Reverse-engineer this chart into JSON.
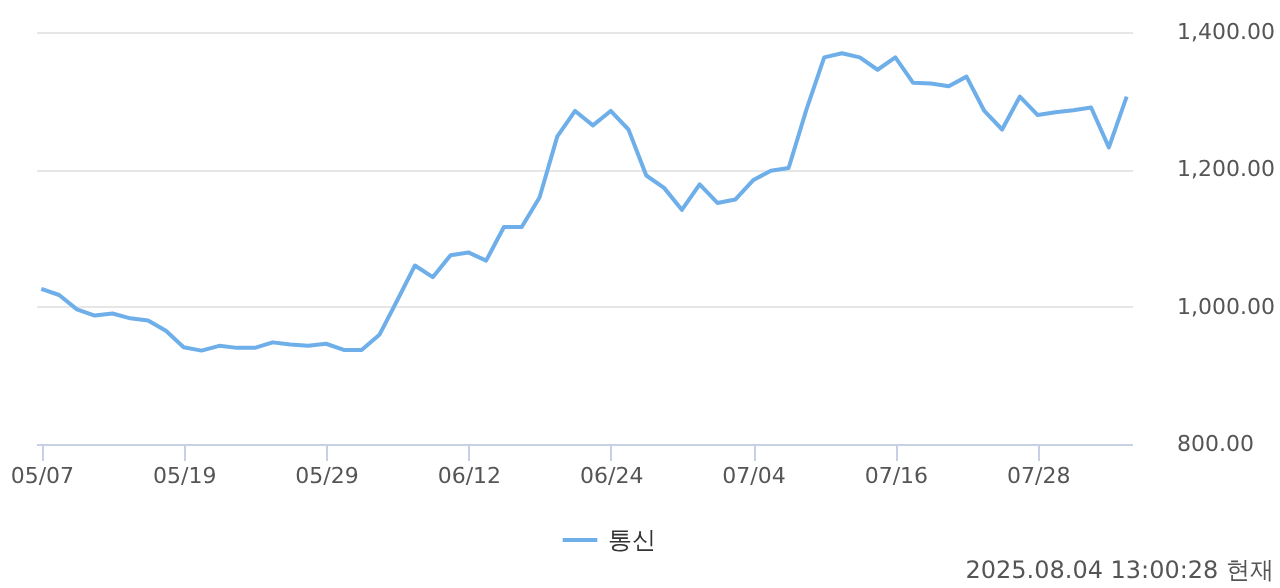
{
  "chart_data": {
    "type": "line",
    "categories": [
      "05/07",
      null,
      null,
      null,
      null,
      null,
      null,
      null,
      "05/19",
      null,
      null,
      null,
      null,
      null,
      null,
      null,
      "05/29",
      null,
      null,
      null,
      null,
      null,
      null,
      null,
      "06/12",
      null,
      null,
      null,
      null,
      null,
      null,
      null,
      "06/24",
      null,
      null,
      null,
      null,
      null,
      null,
      null,
      "07/04",
      null,
      null,
      null,
      null,
      null,
      null,
      null,
      "07/16",
      null,
      null,
      null,
      null,
      null,
      null,
      null,
      "07/28",
      null,
      null,
      null,
      null,
      null
    ],
    "series": [
      {
        "name": "통신",
        "color": "#6eaee9",
        "values": [
          1026,
          1017,
          996,
          987,
          990,
          983,
          980,
          965,
          941,
          936,
          943,
          940,
          940,
          948,
          945,
          943,
          946,
          937,
          937,
          959,
          1009,
          1060,
          1043,
          1075,
          1079,
          1067,
          1116,
          1116,
          1159,
          1248,
          1285,
          1264,
          1285,
          1258,
          1191,
          1173,
          1141,
          1178,
          1151,
          1156,
          1184,
          1198,
          1202,
          1287,
          1363,
          1369,
          1363,
          1345,
          1363,
          1326,
          1325,
          1321,
          1335,
          1285,
          1258,
          1306,
          1279,
          1283,
          1286,
          1290,
          1232,
          1306
        ]
      }
    ],
    "ylim": [
      800,
      1400
    ],
    "yticks": [
      {
        "value": 800,
        "label": "800.00"
      },
      {
        "value": 1000,
        "label": "1,000.00"
      },
      {
        "value": 1200,
        "label": "1,200.00"
      },
      {
        "value": 1400,
        "label": "1,400.00"
      }
    ],
    "grid": "y",
    "legend": "bottom",
    "marker": "none",
    "line_style": "solid",
    "annotations": [
      "2025.08.04 13:00:28 현재"
    ]
  }
}
